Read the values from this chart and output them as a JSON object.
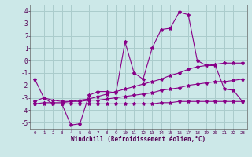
{
  "xlabel": "Windchill (Refroidissement éolien,°C)",
  "background_color": "#cce8e8",
  "grid_color": "#aacccc",
  "line_color": "#880088",
  "hours": [
    0,
    1,
    2,
    3,
    4,
    5,
    6,
    7,
    8,
    9,
    10,
    11,
    12,
    13,
    14,
    15,
    16,
    17,
    18,
    19,
    20,
    21,
    22,
    23
  ],
  "series1": [
    -1.5,
    -3.0,
    -3.5,
    -3.5,
    -5.2,
    -5.1,
    -2.8,
    -2.5,
    -2.5,
    -2.6,
    1.5,
    -1.0,
    -1.5,
    1.0,
    2.5,
    2.6,
    3.9,
    3.7,
    0.0,
    -0.4,
    -0.4,
    -2.3,
    -2.4,
    -3.3
  ],
  "series2": [
    -3.3,
    -3.0,
    -3.2,
    -3.3,
    -3.3,
    -3.2,
    -3.1,
    -2.9,
    -2.7,
    -2.5,
    -2.3,
    -2.1,
    -1.9,
    -1.7,
    -1.5,
    -1.2,
    -1.0,
    -0.7,
    -0.5,
    -0.4,
    -0.3,
    -0.2,
    -0.2,
    -0.2
  ],
  "series3": [
    -3.5,
    -3.4,
    -3.4,
    -3.4,
    -3.3,
    -3.3,
    -3.2,
    -3.2,
    -3.1,
    -3.0,
    -2.9,
    -2.8,
    -2.7,
    -2.6,
    -2.4,
    -2.3,
    -2.2,
    -2.0,
    -1.9,
    -1.8,
    -1.7,
    -1.7,
    -1.6,
    -1.5
  ],
  "series4": [
    -3.5,
    -3.5,
    -3.5,
    -3.5,
    -3.5,
    -3.5,
    -3.5,
    -3.5,
    -3.5,
    -3.5,
    -3.5,
    -3.5,
    -3.5,
    -3.5,
    -3.4,
    -3.4,
    -3.3,
    -3.3,
    -3.3,
    -3.3,
    -3.3,
    -3.3,
    -3.3,
    -3.3
  ],
  "ylim": [
    -5.5,
    4.5
  ],
  "xlim": [
    -0.5,
    23.5
  ],
  "yticks": [
    -5,
    -4,
    -3,
    -2,
    -1,
    0,
    1,
    2,
    3,
    4
  ],
  "xticks": [
    0,
    1,
    2,
    3,
    4,
    5,
    6,
    7,
    8,
    9,
    10,
    11,
    12,
    13,
    14,
    15,
    16,
    17,
    18,
    19,
    20,
    21,
    22,
    23
  ]
}
